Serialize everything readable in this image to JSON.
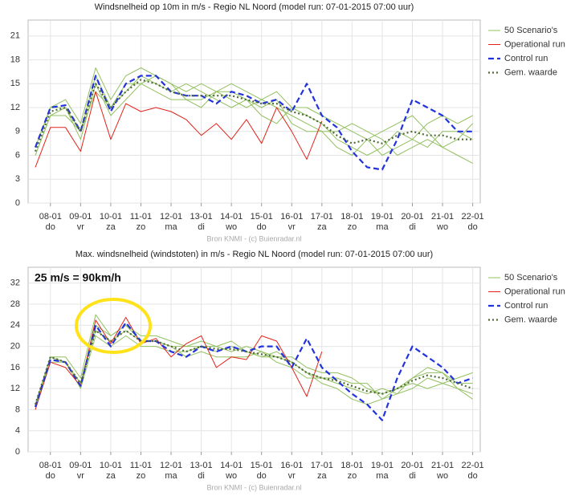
{
  "chart_data": [
    {
      "type": "line",
      "title": "Windsnelheid op 10m in m/s - Regio NL Noord (model run: 07-01-2015 07:00 uur)",
      "source": "Bron KNMI - (c) Buienradar.nl",
      "categories": [
        null,
        "08-01",
        null,
        "09-01",
        null,
        "10-01",
        null,
        "11-01",
        null,
        "12-01",
        null,
        "13-01",
        null,
        "14-01",
        null,
        "15-01",
        null,
        "16-01",
        null,
        "17-01",
        null,
        "18-01",
        null,
        "19-01",
        null,
        "20-01",
        null,
        "21-01",
        null,
        "22-01"
      ],
      "weekdays": [
        null,
        "do",
        null,
        "vr",
        null,
        "za",
        null,
        "zo",
        null,
        "ma",
        null,
        "di",
        null,
        "wo",
        null,
        "do",
        null,
        "vr",
        null,
        "za",
        null,
        "zo",
        null,
        "ma",
        null,
        "di",
        null,
        "wo",
        null,
        "do"
      ],
      "ylim": [
        0,
        23
      ],
      "yticks": [
        0,
        3,
        6,
        9,
        12,
        15,
        18,
        21
      ],
      "grid": true,
      "series": [
        {
          "name": "50 Scenario's",
          "color": "#93c060",
          "style": "solid",
          "members": [
            [
              7,
              12,
              13,
              10,
              17,
              13,
              16,
              17,
              16,
              15,
              14,
              15,
              14,
              13,
              12,
              13,
              12,
              11,
              10,
              9,
              7,
              6,
              8,
              9,
              10,
              11,
              9,
              7,
              6,
              5
            ],
            [
              6,
              11,
              12,
              8,
              15,
              11,
              13,
              15,
              14,
              13,
              13,
              12,
              14,
              15,
              14,
              13,
              14,
              12,
              12,
              11,
              10,
              9,
              8,
              6,
              7,
              8,
              10,
              11,
              10,
              11
            ],
            [
              6,
              11,
              11,
              9,
              14,
              12,
              14,
              16,
              15,
              14,
              15,
              14,
              13,
              12,
              13,
              11,
              10,
              12,
              11,
              10,
              8,
              7,
              6,
              7,
              9,
              8,
              7,
              9,
              9,
              8
            ],
            [
              7,
              12,
              12,
              9,
              16,
              12,
              15,
              15,
              16,
              15,
              13,
              13,
              14,
              14,
              13,
              12,
              13,
              10,
              9,
              9,
              9,
              10,
              9,
              8,
              6,
              7,
              8,
              7,
              8,
              10
            ]
          ]
        },
        {
          "name": "Operational run",
          "color": "#e2231a",
          "style": "solid",
          "values": [
            4.5,
            9.5,
            9.5,
            6.5,
            14,
            8,
            12.5,
            11.5,
            12,
            11.5,
            10.5,
            8.5,
            10,
            8,
            10.5,
            7.5,
            12,
            9,
            5.5,
            10.3,
            null,
            null,
            null,
            null,
            null,
            null,
            null,
            null,
            null,
            null
          ]
        },
        {
          "name": "Control run",
          "color": "#2233dd",
          "style": "dash",
          "values": [
            7,
            12,
            12.3,
            9,
            16,
            11.5,
            15,
            16,
            16,
            14,
            13.5,
            13.5,
            12.5,
            14,
            13.5,
            12.5,
            13,
            11.5,
            15,
            11,
            9.5,
            6.5,
            4.5,
            4.2,
            8,
            13,
            12,
            11,
            9,
            9
          ]
        },
        {
          "name": "Gem. waarde",
          "color": "#4f6b35",
          "style": "dot",
          "values": [
            6.5,
            11.5,
            12,
            9,
            15,
            12,
            14,
            15.5,
            15,
            14,
            13.5,
            13.5,
            13.5,
            13.5,
            13,
            12.5,
            12.5,
            11.5,
            11,
            10,
            8.5,
            7.5,
            8,
            7.5,
            8.5,
            9,
            8.5,
            8.5,
            8,
            8
          ]
        }
      ]
    },
    {
      "type": "line",
      "title": "Max. windsnelheid (windstoten) in m/s - Regio NL Noord (model run: 07-01-2015 07:00 uur)",
      "source": "Bron KNMI - (c) Buienradar.nl",
      "annotation": "25 m/s = 90km/h",
      "categories": [
        null,
        "08-01",
        null,
        "09-01",
        null,
        "10-01",
        null,
        "11-01",
        null,
        "12-01",
        null,
        "13-01",
        null,
        "14-01",
        null,
        "15-01",
        null,
        "16-01",
        null,
        "17-01",
        null,
        "18-01",
        null,
        "19-01",
        null,
        "20-01",
        null,
        "21-01",
        null,
        "22-01"
      ],
      "weekdays": [
        null,
        "do",
        null,
        "vr",
        null,
        "za",
        null,
        "zo",
        null,
        "ma",
        null,
        "di",
        null,
        "wo",
        null,
        "do",
        null,
        "vr",
        null,
        "za",
        null,
        "zo",
        null,
        "ma",
        null,
        "di",
        null,
        "wo",
        null,
        "do"
      ],
      "ylim": [
        0,
        35
      ],
      "yticks": [
        0,
        4,
        8,
        12,
        16,
        20,
        24,
        28,
        32
      ],
      "grid": true,
      "series": [
        {
          "name": "50 Scenario's",
          "color": "#93c060",
          "style": "solid",
          "members": [
            [
              9,
              18,
              18,
              14,
              26,
              22,
              24,
              22,
              22,
              21,
              20,
              21,
              20,
              21,
              19,
              18,
              19,
              17,
              15,
              13,
              12,
              10,
              9,
              10,
              12,
              14,
              16,
              15,
              12,
              10
            ],
            [
              9,
              17,
              17,
              12,
              22,
              20,
              22,
              20,
              20,
              19,
              19,
              20,
              20,
              19,
              20,
              19,
              18,
              18,
              16,
              15,
              15,
              14,
              12,
              11,
              12,
              13,
              12,
              13,
              14,
              15
            ],
            [
              8,
              18,
              17,
              13,
              23,
              21,
              23,
              21,
              21,
              20,
              18,
              19,
              18,
              18,
              18,
              19,
              17,
              16,
              14,
              14,
              13,
              12,
              11,
              12,
              11,
              12,
              14,
              13,
              12,
              11
            ],
            [
              9,
              18,
              17,
              13,
              24,
              22,
              24,
              21,
              21,
              20,
              20,
              20,
              19,
              20,
              19,
              18,
              18,
              17,
              15,
              14,
              14,
              13,
              13,
              10,
              11,
              14,
              15,
              15,
              13,
              13
            ]
          ]
        },
        {
          "name": "Operational run",
          "color": "#e2231a",
          "style": "solid",
          "values": [
            8,
            17,
            16,
            12.5,
            25,
            20.5,
            25.5,
            20.5,
            21.5,
            18,
            20.5,
            22,
            16,
            18,
            17.5,
            22,
            21,
            16,
            10.5,
            19,
            null,
            null,
            null,
            null,
            null,
            null,
            null,
            null,
            null,
            null
          ]
        },
        {
          "name": "Control run",
          "color": "#2233dd",
          "style": "dash",
          "values": [
            8.5,
            17.5,
            17,
            12.5,
            24,
            20,
            24.5,
            21,
            21,
            19,
            18,
            20,
            19,
            20,
            19,
            20,
            20,
            16,
            21.5,
            16,
            13.5,
            11,
            9,
            6,
            14,
            20,
            18,
            16,
            13,
            14
          ]
        },
        {
          "name": "Gem. waarde",
          "color": "#4f6b35",
          "style": "dot",
          "values": [
            9,
            18,
            17,
            13,
            23,
            21,
            23,
            21,
            21,
            20,
            19,
            20,
            19.5,
            19.5,
            19,
            18.5,
            18,
            17,
            15,
            14,
            13.5,
            12.5,
            11.5,
            11,
            12,
            13.5,
            14.5,
            14,
            13,
            12
          ]
        }
      ]
    }
  ]
}
